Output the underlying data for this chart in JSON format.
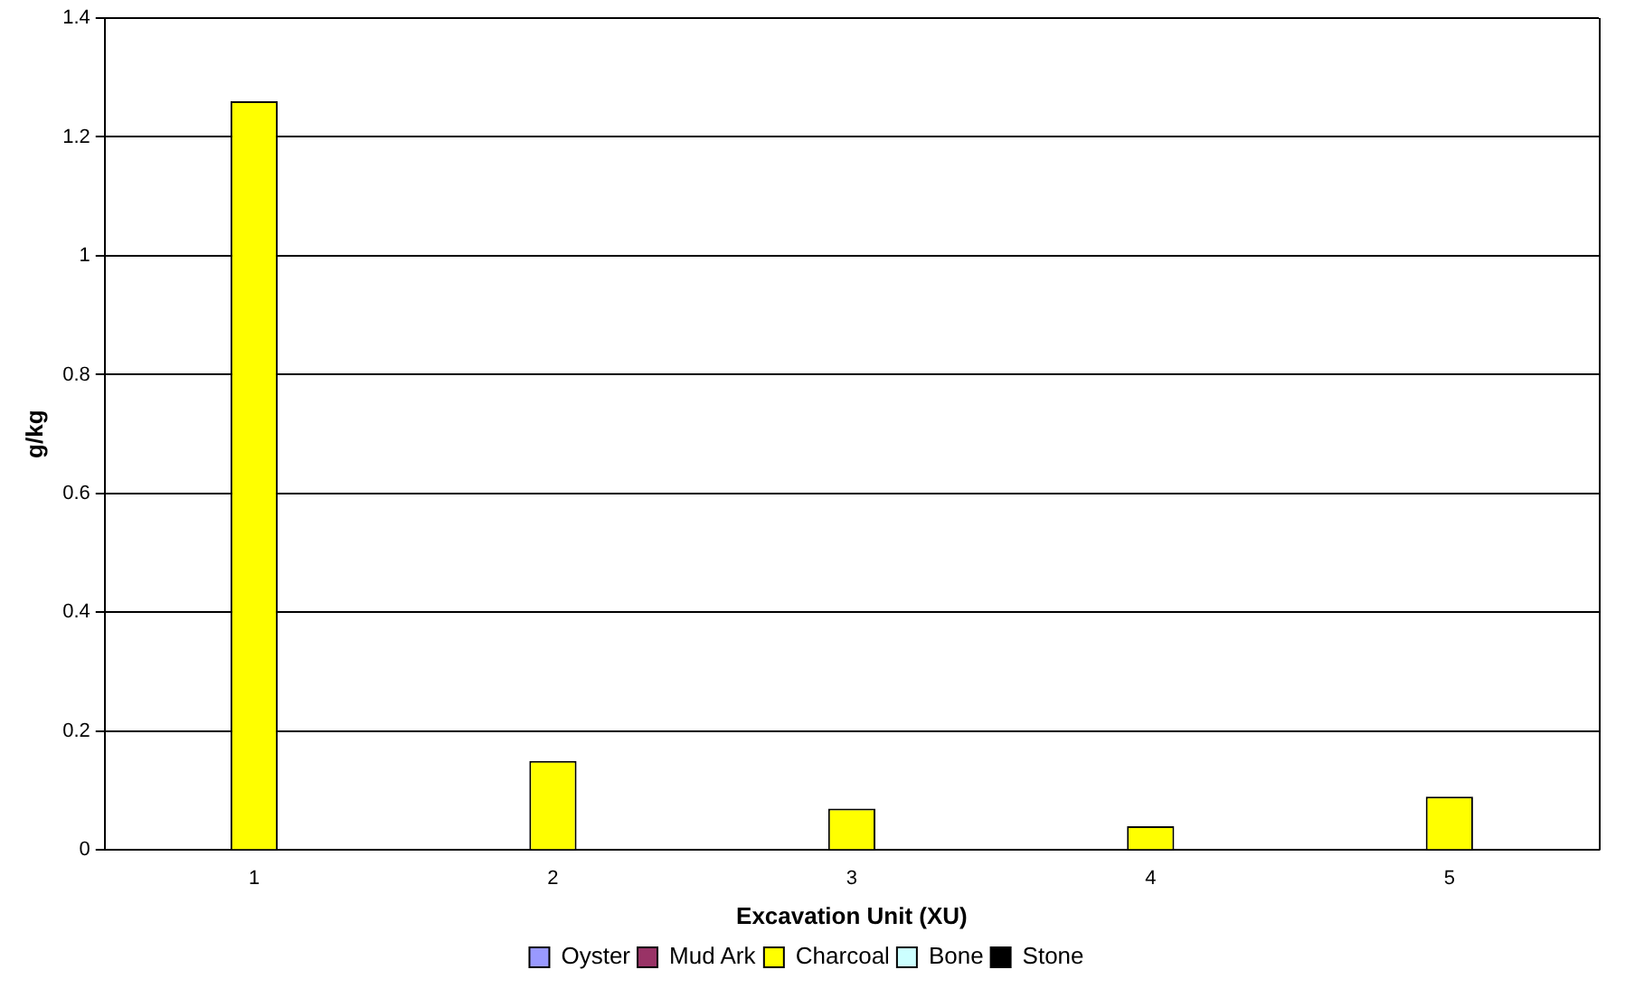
{
  "chart_data": {
    "type": "bar",
    "xlabel": "Excavation Unit (XU)",
    "ylabel": "g/kg",
    "categories": [
      "1",
      "2",
      "3",
      "4",
      "5"
    ],
    "series": [
      {
        "name": "Oyster",
        "color": "#9999ff",
        "values": [
          null,
          null,
          null,
          null,
          null
        ]
      },
      {
        "name": "Mud Ark",
        "color": "#993366",
        "values": [
          null,
          null,
          null,
          null,
          null
        ]
      },
      {
        "name": "Charcoal",
        "color": "#ffff00",
        "values": [
          1.26,
          0.15,
          0.07,
          0.04,
          0.09
        ]
      },
      {
        "name": "Bone",
        "color": "#ccffff",
        "values": [
          null,
          null,
          null,
          null,
          null
        ]
      },
      {
        "name": "Stone",
        "color": "#000000",
        "values": [
          null,
          null,
          null,
          null,
          null
        ]
      }
    ],
    "ylim": [
      0,
      1.4
    ],
    "yticks": [
      0,
      0.2,
      0.4,
      0.6,
      0.8,
      1,
      1.2,
      1.4
    ],
    "grid": "y",
    "legend": "bottom"
  }
}
